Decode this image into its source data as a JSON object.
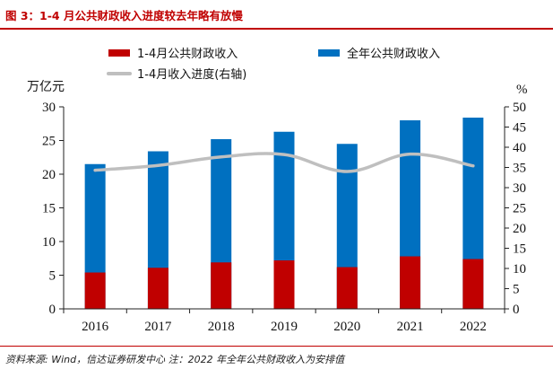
{
  "figure": {
    "title": "图 3：1-4 月公共财政收入进度较去年略有放慢",
    "footnote": "资料来源: Wind，信达证券研发中心   注：2022 年全年公共财政收入为安排值"
  },
  "colors": {
    "accent": "#c00000",
    "bar_partial": "#c00000",
    "bar_full": "#0070c0",
    "progress_line": "#bfbfbf"
  },
  "chart_data": {
    "type": "bar",
    "categories": [
      "2016",
      "2017",
      "2018",
      "2019",
      "2020",
      "2021",
      "2022"
    ],
    "series": [
      {
        "name": "1-4月公共财政收入",
        "type": "bar",
        "axis": "left",
        "color": "#c00000",
        "values": [
          5.4,
          6.1,
          6.9,
          7.2,
          6.2,
          7.8,
          7.4
        ]
      },
      {
        "name": "全年公共财政收入",
        "type": "bar",
        "axis": "left",
        "color": "#0070c0",
        "values": [
          21.5,
          23.4,
          25.2,
          26.3,
          24.5,
          28.0,
          28.4
        ]
      },
      {
        "name": "1-4月收入进度(右轴)",
        "type": "line",
        "axis": "right",
        "color": "#bfbfbf",
        "values": [
          34.3,
          35.5,
          37.6,
          38.2,
          34.0,
          38.3,
          35.4
        ]
      }
    ],
    "y_left": {
      "label": "万亿元",
      "ylim": [
        0,
        30
      ],
      "ticks": [
        "0",
        "5",
        "10",
        "15",
        "20",
        "25",
        "30"
      ]
    },
    "y_right": {
      "label": "%",
      "ylim": [
        0,
        50
      ],
      "ticks": [
        "0",
        "5",
        "10",
        "15",
        "20",
        "25",
        "30",
        "35",
        "40",
        "45",
        "50"
      ]
    },
    "grid": false,
    "legend_position": "top"
  }
}
